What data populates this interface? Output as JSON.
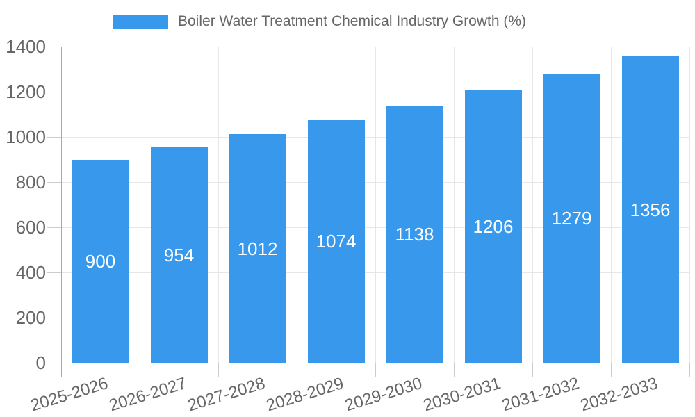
{
  "legend": {
    "label": "Boiler Water Treatment Chemical Industry Growth (%)"
  },
  "chart_data": {
    "type": "bar",
    "title": "Boiler Water Treatment Chemical Industry Growth (%)",
    "categories": [
      "2025-2026",
      "2026-2027",
      "2027-2028",
      "2028-2029",
      "2029-2030",
      "2030-2031",
      "2031-2032",
      "2032-2033"
    ],
    "values": [
      900,
      954,
      1012,
      1074,
      1138,
      1206,
      1279,
      1356
    ],
    "xlabel": "",
    "ylabel": "",
    "ylim": [
      0,
      1400
    ],
    "yticks": [
      0,
      200,
      400,
      600,
      800,
      1000,
      1200,
      1400
    ],
    "grid": true,
    "legend_position": "top",
    "bar_color": "#3899EC",
    "value_label_color": "#FFFFFF",
    "axis_text_color": "#666666",
    "grid_color": "#E6E6E6",
    "axis_line_color": "#A8A8A8"
  }
}
